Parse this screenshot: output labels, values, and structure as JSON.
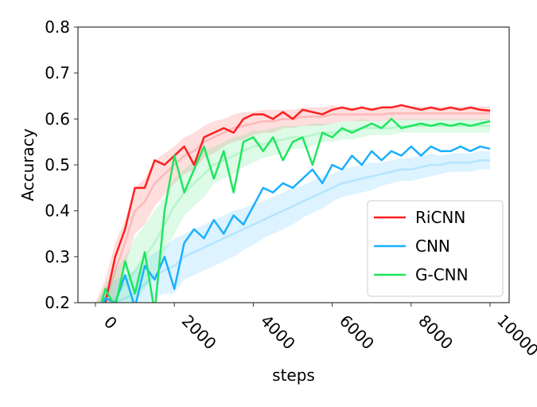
{
  "chart_data": {
    "type": "line",
    "title": "",
    "xlabel": "steps",
    "ylabel": "Accuracy",
    "xlim": [
      0,
      10000
    ],
    "ylim": [
      0.2,
      0.8
    ],
    "xticks": [
      "0",
      "2000",
      "4000",
      "6000",
      "8000",
      "10000"
    ],
    "xtick_values": [
      0,
      2000,
      4000,
      6000,
      8000,
      10000
    ],
    "yticks": [
      "0.2",
      "0.3",
      "0.4",
      "0.5",
      "0.6",
      "0.7",
      "0.8"
    ],
    "ytick_values": [
      0.2,
      0.3,
      0.4,
      0.5,
      0.6,
      0.7,
      0.8
    ],
    "grid": false,
    "legend_position": "lower-right",
    "x": [
      0,
      250,
      500,
      750,
      1000,
      1250,
      1500,
      1750,
      2000,
      2250,
      2500,
      2750,
      3000,
      3250,
      3500,
      3750,
      4000,
      4250,
      4500,
      4750,
      5000,
      5250,
      5500,
      5750,
      6000,
      6250,
      6500,
      6750,
      7000,
      7250,
      7500,
      7750,
      8000,
      8250,
      8500,
      8750,
      9000,
      9250,
      9500,
      9750,
      10000
    ],
    "series": [
      {
        "name": "RiCNN",
        "color": "#ff1f1f",
        "values": [
          0.15,
          0.2,
          0.3,
          0.36,
          0.45,
          0.45,
          0.51,
          0.5,
          0.52,
          0.54,
          0.5,
          0.56,
          0.57,
          0.58,
          0.57,
          0.6,
          0.61,
          0.61,
          0.6,
          0.615,
          0.6,
          0.62,
          0.615,
          0.61,
          0.62,
          0.625,
          0.62,
          0.625,
          0.62,
          0.625,
          0.625,
          0.63,
          0.625,
          0.62,
          0.625,
          0.62,
          0.625,
          0.62,
          0.625,
          0.62,
          0.618
        ],
        "band_mean": [
          0.15,
          0.2,
          0.27,
          0.33,
          0.4,
          0.42,
          0.46,
          0.48,
          0.5,
          0.52,
          0.53,
          0.55,
          0.56,
          0.57,
          0.58,
          0.585,
          0.59,
          0.595,
          0.595,
          0.6,
          0.6,
          0.605,
          0.605,
          0.605,
          0.61,
          0.61,
          0.61,
          0.61,
          0.61,
          0.61,
          0.612,
          0.612,
          0.612,
          0.612,
          0.612,
          0.612,
          0.612,
          0.612,
          0.612,
          0.612,
          0.612
        ],
        "band_halfwidth": [
          0.05,
          0.05,
          0.06,
          0.05,
          0.05,
          0.05,
          0.05,
          0.045,
          0.04,
          0.04,
          0.04,
          0.035,
          0.035,
          0.03,
          0.03,
          0.03,
          0.025,
          0.025,
          0.025,
          0.02,
          0.02,
          0.02,
          0.02,
          0.02,
          0.02,
          0.015,
          0.015,
          0.015,
          0.015,
          0.015,
          0.015,
          0.015,
          0.015,
          0.015,
          0.015,
          0.015,
          0.015,
          0.015,
          0.015,
          0.015,
          0.015
        ]
      },
      {
        "name": "CNN",
        "color": "#1ab0ff",
        "values": [
          0.15,
          0.21,
          0.2,
          0.26,
          0.19,
          0.28,
          0.25,
          0.3,
          0.23,
          0.33,
          0.36,
          0.34,
          0.38,
          0.35,
          0.39,
          0.37,
          0.41,
          0.45,
          0.44,
          0.46,
          0.45,
          0.47,
          0.49,
          0.46,
          0.5,
          0.49,
          0.52,
          0.5,
          0.53,
          0.51,
          0.53,
          0.52,
          0.54,
          0.52,
          0.54,
          0.53,
          0.53,
          0.54,
          0.53,
          0.54,
          0.535
        ],
        "band_mean": [
          0.15,
          0.19,
          0.2,
          0.21,
          0.22,
          0.24,
          0.26,
          0.27,
          0.28,
          0.3,
          0.31,
          0.32,
          0.33,
          0.34,
          0.35,
          0.36,
          0.37,
          0.38,
          0.39,
          0.4,
          0.41,
          0.42,
          0.43,
          0.44,
          0.45,
          0.46,
          0.465,
          0.47,
          0.475,
          0.48,
          0.485,
          0.49,
          0.49,
          0.495,
          0.5,
          0.5,
          0.505,
          0.505,
          0.505,
          0.51,
          0.51
        ],
        "band_halfwidth": [
          0.04,
          0.04,
          0.05,
          0.05,
          0.05,
          0.05,
          0.05,
          0.05,
          0.06,
          0.05,
          0.05,
          0.05,
          0.05,
          0.05,
          0.05,
          0.045,
          0.045,
          0.04,
          0.04,
          0.04,
          0.04,
          0.035,
          0.035,
          0.035,
          0.03,
          0.03,
          0.03,
          0.03,
          0.03,
          0.025,
          0.025,
          0.025,
          0.025,
          0.025,
          0.025,
          0.02,
          0.02,
          0.02,
          0.02,
          0.02,
          0.02
        ]
      },
      {
        "name": "G-CNN",
        "color": "#1ee65e",
        "values": [
          0.15,
          0.23,
          0.19,
          0.29,
          0.22,
          0.31,
          0.18,
          0.4,
          0.52,
          0.44,
          0.49,
          0.54,
          0.47,
          0.53,
          0.44,
          0.55,
          0.56,
          0.53,
          0.56,
          0.51,
          0.55,
          0.56,
          0.5,
          0.57,
          0.56,
          0.58,
          0.57,
          0.58,
          0.59,
          0.58,
          0.6,
          0.58,
          0.585,
          0.59,
          0.585,
          0.59,
          0.585,
          0.59,
          0.585,
          0.59,
          0.595
        ],
        "band_mean": [
          0.15,
          0.19,
          0.21,
          0.24,
          0.27,
          0.3,
          0.33,
          0.37,
          0.41,
          0.44,
          0.46,
          0.48,
          0.5,
          0.51,
          0.52,
          0.53,
          0.54,
          0.545,
          0.55,
          0.555,
          0.56,
          0.56,
          0.565,
          0.57,
          0.57,
          0.575,
          0.575,
          0.58,
          0.58,
          0.58,
          0.58,
          0.585,
          0.585,
          0.585,
          0.585,
          0.585,
          0.585,
          0.585,
          0.585,
          0.585,
          0.585
        ],
        "band_halfwidth": [
          0.04,
          0.05,
          0.06,
          0.06,
          0.07,
          0.07,
          0.07,
          0.06,
          0.06,
          0.05,
          0.05,
          0.05,
          0.04,
          0.04,
          0.04,
          0.035,
          0.035,
          0.03,
          0.03,
          0.03,
          0.025,
          0.025,
          0.025,
          0.02,
          0.02,
          0.02,
          0.02,
          0.02,
          0.015,
          0.015,
          0.015,
          0.015,
          0.015,
          0.015,
          0.015,
          0.015,
          0.015,
          0.015,
          0.015,
          0.015,
          0.015
        ]
      }
    ]
  }
}
